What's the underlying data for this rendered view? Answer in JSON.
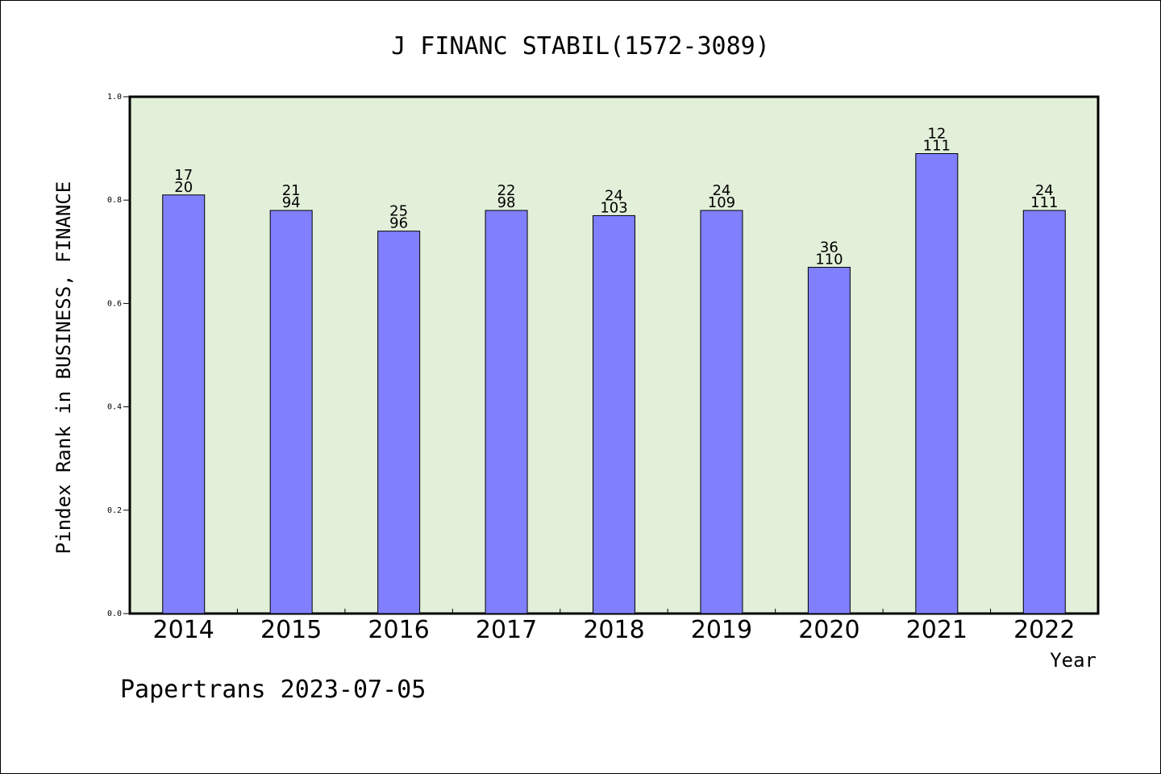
{
  "chart_data": {
    "type": "bar",
    "title": "J FINANC STABIL(1572-3089)",
    "xlabel": "Year",
    "ylabel": "Pindex Rank in BUSINESS, FINANCE",
    "categories": [
      "2014",
      "2015",
      "2016",
      "2017",
      "2018",
      "2019",
      "2020",
      "2021",
      "2022"
    ],
    "values": [
      0.81,
      0.78,
      0.74,
      0.78,
      0.77,
      0.78,
      0.67,
      0.89,
      0.78
    ],
    "labels_top": [
      "17",
      "21",
      "25",
      "22",
      "24",
      "24",
      "36",
      "12",
      "24"
    ],
    "labels_bottom": [
      "20",
      "94",
      "96",
      "98",
      "103",
      "109",
      "110",
      "111",
      "111"
    ],
    "ylim": [
      0,
      1
    ],
    "yticks": [
      "0.0",
      "0.2",
      "0.4",
      "0.6",
      "0.8",
      "1.0"
    ],
    "grid": false,
    "legend": "none",
    "colors": {
      "plot_background": "#e2efd9",
      "bar_fill": "#8080ff",
      "axis": "#000000"
    }
  },
  "footer": {
    "text": "Papertrans 2023-07-05"
  }
}
